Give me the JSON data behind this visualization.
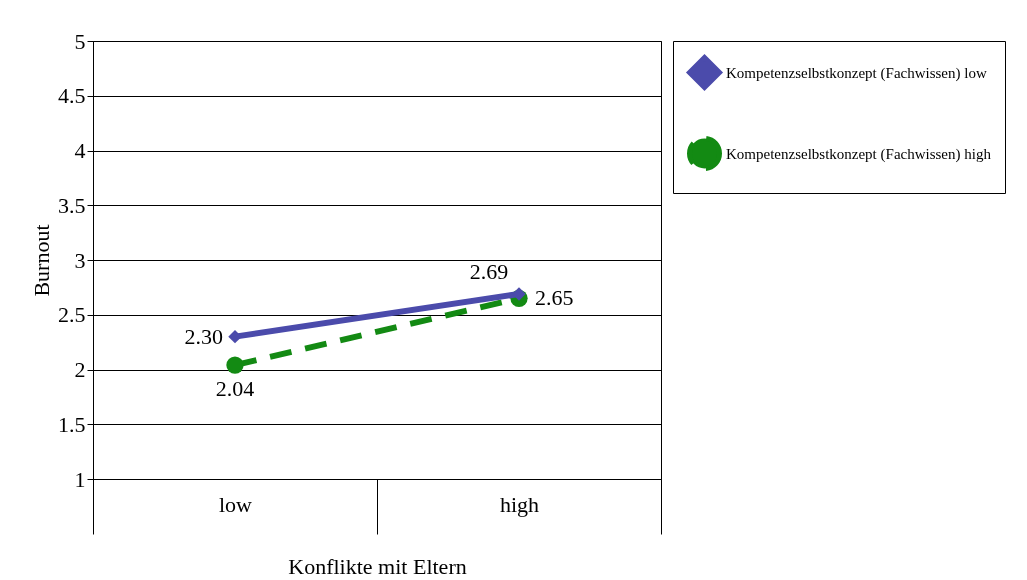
{
  "chart_data": {
    "type": "line",
    "xlabel": "Konflikte mit Eltern",
    "ylabel": "Burnout",
    "categories": [
      "low",
      "high"
    ],
    "series": [
      {
        "name": "Kompetenzselbstkonzept (Fachwissen) low",
        "color": "#4b4bab",
        "values": [
          2.3,
          2.69
        ],
        "value_labels": [
          "2.30",
          "2.69"
        ],
        "marker": "diamond",
        "line_style": "solid"
      },
      {
        "name": "Kompetenzselbstkonzept (Fachwissen) high",
        "color": "#138a13",
        "values": [
          2.04,
          2.65
        ],
        "value_labels": [
          "2.04",
          "2.65"
        ],
        "marker": "circle",
        "line_style": "dashed"
      }
    ],
    "ylim": [
      1,
      5
    ],
    "yticks": [
      1,
      1.5,
      2,
      2.5,
      3,
      3.5,
      4,
      4.5,
      5
    ],
    "grid": "y",
    "legend": "right"
  }
}
